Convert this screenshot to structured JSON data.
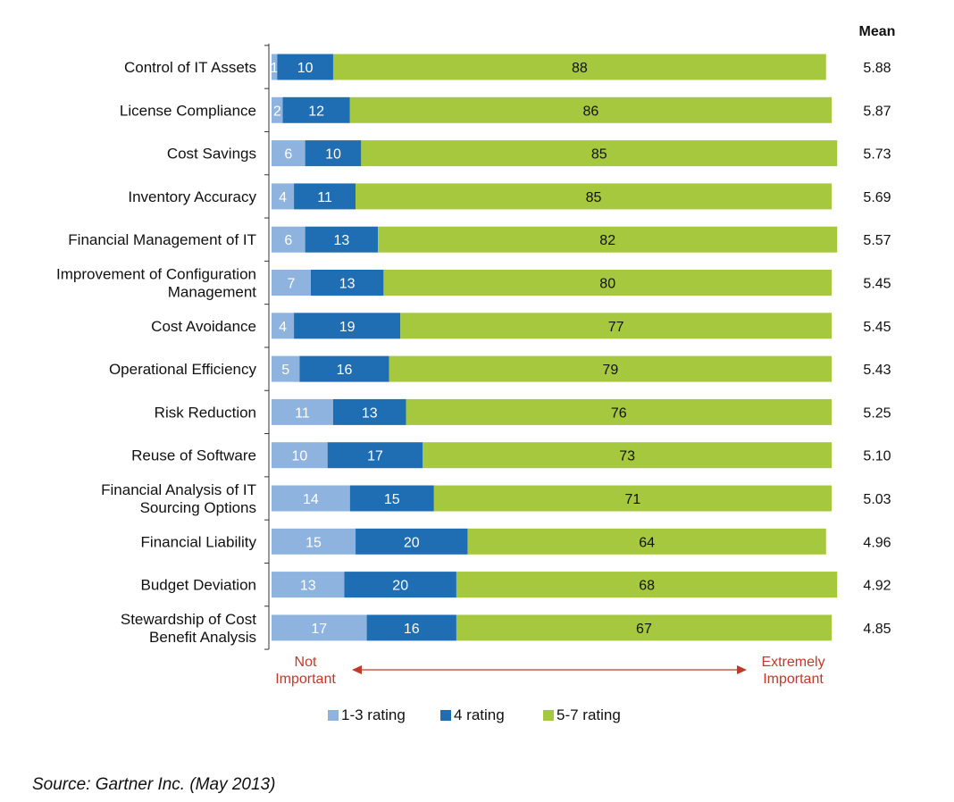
{
  "chart_data": {
    "type": "bar",
    "orientation": "horizontal",
    "stacked": true,
    "categories": [
      "Control of IT Assets",
      "License Compliance",
      "Cost Savings",
      "Inventory Accuracy",
      "Financial Management of IT",
      "Improvement of Configuration Management",
      "Cost Avoidance",
      "Operational Efficiency",
      "Risk Reduction",
      "Reuse of Software",
      "Financial Analysis of IT Sourcing Options",
      "Financial Liability",
      "Budget Deviation",
      "Stewardship of Cost Benefit Analysis"
    ],
    "category_lines": [
      [
        "Control of IT Assets"
      ],
      [
        "License Compliance"
      ],
      [
        "Cost Savings"
      ],
      [
        "Inventory Accuracy"
      ],
      [
        "Financial Management of IT"
      ],
      [
        "Improvement of Configuration",
        "Management"
      ],
      [
        "Cost Avoidance"
      ],
      [
        "Operational Efficiency"
      ],
      [
        "Risk Reduction"
      ],
      [
        "Reuse of Software"
      ],
      [
        "Financial Analysis of IT",
        "Sourcing Options"
      ],
      [
        "Financial Liability"
      ],
      [
        "Budget Deviation"
      ],
      [
        "Stewardship of Cost",
        "Benefit Analysis"
      ]
    ],
    "series": [
      {
        "name": "1-3 rating",
        "color": "#8db3de",
        "label_color": "#ffffff",
        "values": [
          1,
          2,
          6,
          4,
          6,
          7,
          4,
          5,
          11,
          10,
          14,
          15,
          13,
          17
        ]
      },
      {
        "name": "4 rating",
        "color": "#1f6db3",
        "label_color": "#ffffff",
        "values": [
          10,
          12,
          10,
          11,
          13,
          13,
          19,
          16,
          13,
          17,
          15,
          20,
          20,
          16
        ]
      },
      {
        "name": "5-7 rating",
        "color": "#a6c83e",
        "label_color": "#111111",
        "values": [
          88,
          86,
          85,
          85,
          82,
          80,
          77,
          79,
          76,
          73,
          71,
          64,
          68,
          67
        ]
      }
    ],
    "means_header": "Mean",
    "means": [
      "5.88",
      "5.87",
      "5.73",
      "5.69",
      "5.57",
      "5.45",
      "5.45",
      "5.43",
      "5.25",
      "5.10",
      "5.03",
      "4.96",
      "4.92",
      "4.85"
    ],
    "scale_low": [
      "Not",
      "Important"
    ],
    "scale_high": [
      "Extremely",
      "Important"
    ],
    "scale_color": "#c0392b",
    "xlim": [
      0,
      100
    ],
    "legend_position": "bottom",
    "grid": false
  },
  "source": "Source: Gartner Inc. (May 2013)"
}
